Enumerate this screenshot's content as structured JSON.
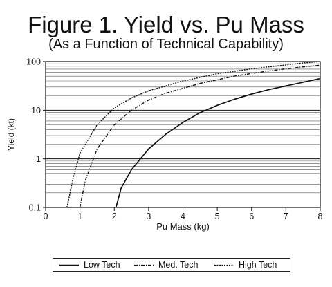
{
  "figure": {
    "title": "Figure 1.  Yield vs. Pu Mass",
    "subtitle": "(As a Function of Technical Capability)"
  },
  "chart_data": {
    "type": "line",
    "title": "Figure 1.  Yield vs. Pu Mass",
    "subtitle": "(As a Function of Technical Capability)",
    "xlabel": "Pu Mass (kg)",
    "ylabel": "Yield (kt)",
    "xlim": [
      0,
      8
    ],
    "ylim": [
      0.1,
      100
    ],
    "yscale": "log",
    "x_ticks": [
      "0",
      "1",
      "2",
      "3",
      "4",
      "5",
      "6",
      "7",
      "8"
    ],
    "y_ticks": [
      "0.1",
      "1",
      "10",
      "100"
    ],
    "grid": "horizontal minor log gridlines",
    "legend_position": "bottom",
    "series": [
      {
        "name": "Low Tech",
        "style": "solid",
        "x": [
          2.05,
          2.2,
          2.5,
          3.0,
          3.5,
          4.0,
          4.5,
          5.0,
          5.5,
          6.0,
          6.5,
          7.0,
          7.5,
          8.0
        ],
        "y": [
          0.1,
          0.25,
          0.6,
          1.6,
          3.2,
          5.6,
          8.9,
          12.6,
          16.8,
          21.5,
          26.5,
          31.6,
          37.6,
          44.7
        ]
      },
      {
        "name": "Med. Tech",
        "style": "dash-dot",
        "x": [
          1.0,
          1.15,
          1.5,
          2.0,
          2.5,
          3.0,
          3.5,
          4.0,
          4.5,
          5.0,
          5.5,
          6.0,
          6.5,
          7.0,
          7.5,
          8.0
        ],
        "y": [
          0.1,
          0.35,
          1.6,
          5.0,
          10.0,
          16.2,
          22.4,
          28.2,
          35.5,
          42.2,
          50.1,
          57.0,
          64.0,
          70.8,
          77.6,
          84.1
        ]
      },
      {
        "name": "High Tech",
        "style": "dotted",
        "x": [
          0.62,
          0.8,
          1.0,
          1.5,
          2.0,
          2.5,
          3.0,
          3.5,
          4.0,
          4.5,
          5.0,
          5.5,
          6.0,
          6.5,
          7.0,
          7.5,
          8.0
        ],
        "y": [
          0.1,
          0.4,
          1.3,
          5.0,
          11.2,
          17.8,
          25.1,
          31.6,
          39.8,
          47.3,
          56.2,
          63.1,
          70.8,
          77.6,
          85.1,
          93.3,
          100.0
        ]
      }
    ]
  }
}
